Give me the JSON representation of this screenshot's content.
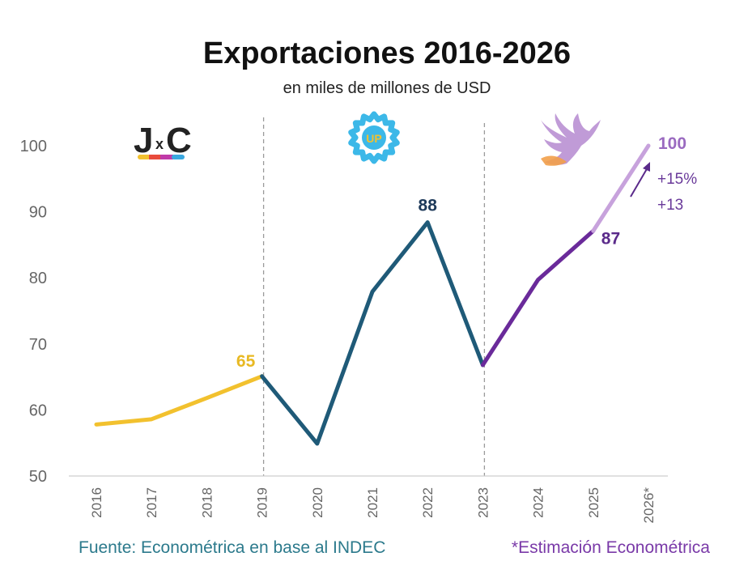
{
  "chart_data": {
    "type": "line",
    "title": "Exportaciones 2016-2026",
    "subtitle": "en miles de millones de USD",
    "xlabel": "",
    "ylabel": "",
    "x": [
      "2016",
      "2017",
      "2018",
      "2019",
      "2020",
      "2021",
      "2022",
      "2023",
      "2024",
      "2025",
      "2026*"
    ],
    "ylim": [
      50,
      100
    ],
    "yticks": [
      50,
      60,
      70,
      80,
      90,
      100
    ],
    "grid": false,
    "series": [
      {
        "name": "",
        "x": [
          "2016",
          "2017",
          "2018",
          "2019"
        ],
        "values": [
          57.8,
          58.6,
          61.8,
          65.1
        ],
        "color": "#f2c12e"
      },
      {
        "name": "",
        "x": [
          "2019",
          "2020",
          "2021",
          "2022",
          "2023"
        ],
        "values": [
          65.1,
          54.9,
          77.9,
          88.4,
          66.8
        ],
        "color": "#1f5a78"
      },
      {
        "name": "",
        "x": [
          "2023",
          "2024",
          "2025"
        ],
        "values": [
          66.8,
          79.7,
          87.1
        ],
        "color": "#6a2a9a"
      },
      {
        "name": "",
        "x": [
          "2025",
          "2026*"
        ],
        "values": [
          87.1,
          100.0
        ],
        "color": "#c7a2dc"
      }
    ],
    "data_labels": [
      {
        "x": "2019",
        "text": "65",
        "color": "#e8b923"
      },
      {
        "x": "2022",
        "text": "88",
        "color": "#1e3a5a"
      },
      {
        "x": "2025",
        "text": "87",
        "color": "#5a2a8a"
      },
      {
        "x": "2026*",
        "text": "100",
        "color": "#9a6ac0"
      }
    ],
    "annotations": [
      "+15%",
      "+13"
    ],
    "period_dividers": [
      "2019",
      "2023"
    ],
    "period_logos": [
      "J",
      "x",
      "C",
      "UP"
    ]
  },
  "footer": {
    "source": "Fuente: Econométrica en base al INDEC",
    "note": "*Estimación Econométrica"
  }
}
